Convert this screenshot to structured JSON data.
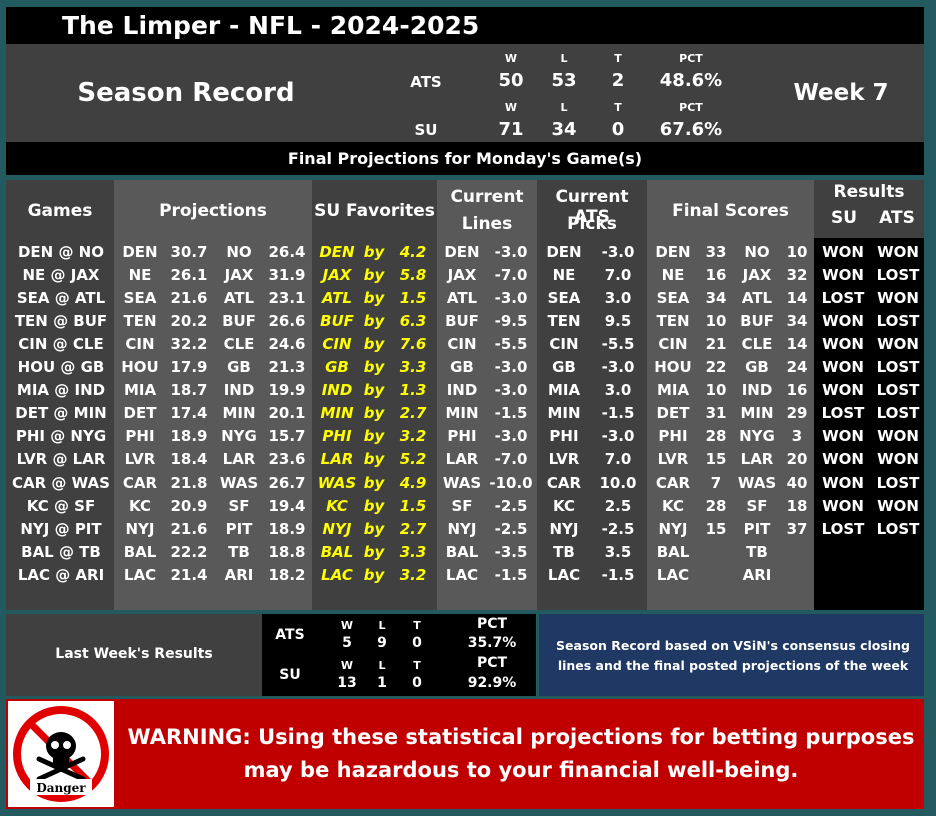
{
  "title": "The Limper - NFL - 2024-2025",
  "season": {
    "label": "Season Record",
    "week": "Week 7",
    "col_w": "W",
    "col_l": "L",
    "col_t": "T",
    "col_pct": "PCT",
    "ats": {
      "label": "ATS",
      "w": "50",
      "l": "53",
      "t": "2",
      "pct": "48.6%"
    },
    "su": {
      "label": "SU",
      "w": "71",
      "l": "34",
      "t": "0",
      "pct": "67.6%"
    }
  },
  "banner": "Final Projections for Monday's Game(s)",
  "headers": {
    "games": "Games",
    "projections": "Projections",
    "su_favorites": "SU Favorites",
    "current_lines_1": "Current",
    "current_lines_2": "Lines",
    "ats_picks_1": "Current ATS",
    "ats_picks_2": "Picks",
    "final_scores": "Final Scores",
    "results": "Results",
    "results_su": "SU",
    "results_ats": "ATS"
  },
  "games": [
    {
      "game": "DEN @ NO",
      "pa": "DEN",
      "pav": "30.7",
      "ph": "NO",
      "phv": "26.4",
      "fav": "DEN",
      "by": "by",
      "fv": "4.2",
      "lt": "DEN",
      "lv": "-3.0",
      "pt": "DEN",
      "pv": "-3.0",
      "fa": "DEN",
      "fas": "33",
      "fh": "NO",
      "fhs": "10",
      "su": "WON",
      "ats": "WON"
    },
    {
      "game": "NE @ JAX",
      "pa": "NE",
      "pav": "26.1",
      "ph": "JAX",
      "phv": "31.9",
      "fav": "JAX",
      "by": "by",
      "fv": "5.8",
      "lt": "JAX",
      "lv": "-7.0",
      "pt": "NE",
      "pv": "7.0",
      "fa": "NE",
      "fas": "16",
      "fh": "JAX",
      "fhs": "32",
      "su": "WON",
      "ats": "LOST"
    },
    {
      "game": "SEA @ ATL",
      "pa": "SEA",
      "pav": "21.6",
      "ph": "ATL",
      "phv": "23.1",
      "fav": "ATL",
      "by": "by",
      "fv": "1.5",
      "lt": "ATL",
      "lv": "-3.0",
      "pt": "SEA",
      "pv": "3.0",
      "fa": "SEA",
      "fas": "34",
      "fh": "ATL",
      "fhs": "14",
      "su": "LOST",
      "ats": "WON"
    },
    {
      "game": "TEN @ BUF",
      "pa": "TEN",
      "pav": "20.2",
      "ph": "BUF",
      "phv": "26.6",
      "fav": "BUF",
      "by": "by",
      "fv": "6.3",
      "lt": "BUF",
      "lv": "-9.5",
      "pt": "TEN",
      "pv": "9.5",
      "fa": "TEN",
      "fas": "10",
      "fh": "BUF",
      "fhs": "34",
      "su": "WON",
      "ats": "LOST"
    },
    {
      "game": "CIN @ CLE",
      "pa": "CIN",
      "pav": "32.2",
      "ph": "CLE",
      "phv": "24.6",
      "fav": "CIN",
      "by": "by",
      "fv": "7.6",
      "lt": "CIN",
      "lv": "-5.5",
      "pt": "CIN",
      "pv": "-5.5",
      "fa": "CIN",
      "fas": "21",
      "fh": "CLE",
      "fhs": "14",
      "su": "WON",
      "ats": "WON"
    },
    {
      "game": "HOU @ GB",
      "pa": "HOU",
      "pav": "17.9",
      "ph": "GB",
      "phv": "21.3",
      "fav": "GB",
      "by": "by",
      "fv": "3.3",
      "lt": "GB",
      "lv": "-3.0",
      "pt": "GB",
      "pv": "-3.0",
      "fa": "HOU",
      "fas": "22",
      "fh": "GB",
      "fhs": "24",
      "su": "WON",
      "ats": "LOST"
    },
    {
      "game": "MIA @ IND",
      "pa": "MIA",
      "pav": "18.7",
      "ph": "IND",
      "phv": "19.9",
      "fav": "IND",
      "by": "by",
      "fv": "1.3",
      "lt": "IND",
      "lv": "-3.0",
      "pt": "MIA",
      "pv": "3.0",
      "fa": "MIA",
      "fas": "10",
      "fh": "IND",
      "fhs": "16",
      "su": "WON",
      "ats": "LOST"
    },
    {
      "game": "DET @ MIN",
      "pa": "DET",
      "pav": "17.4",
      "ph": "MIN",
      "phv": "20.1",
      "fav": "MIN",
      "by": "by",
      "fv": "2.7",
      "lt": "MIN",
      "lv": "-1.5",
      "pt": "MIN",
      "pv": "-1.5",
      "fa": "DET",
      "fas": "31",
      "fh": "MIN",
      "fhs": "29",
      "su": "LOST",
      "ats": "LOST"
    },
    {
      "game": "PHI @ NYG",
      "pa": "PHI",
      "pav": "18.9",
      "ph": "NYG",
      "phv": "15.7",
      "fav": "PHI",
      "by": "by",
      "fv": "3.2",
      "lt": "PHI",
      "lv": "-3.0",
      "pt": "PHI",
      "pv": "-3.0",
      "fa": "PHI",
      "fas": "28",
      "fh": "NYG",
      "fhs": "3",
      "su": "WON",
      "ats": "WON"
    },
    {
      "game": "LVR @ LAR",
      "pa": "LVR",
      "pav": "18.4",
      "ph": "LAR",
      "phv": "23.6",
      "fav": "LAR",
      "by": "by",
      "fv": "5.2",
      "lt": "LAR",
      "lv": "-7.0",
      "pt": "LVR",
      "pv": "7.0",
      "fa": "LVR",
      "fas": "15",
      "fh": "LAR",
      "fhs": "20",
      "su": "WON",
      "ats": "WON"
    },
    {
      "game": "CAR @ WAS",
      "pa": "CAR",
      "pav": "21.8",
      "ph": "WAS",
      "phv": "26.7",
      "fav": "WAS",
      "by": "by",
      "fv": "4.9",
      "lt": "WAS",
      "lv": "-10.0",
      "pt": "CAR",
      "pv": "10.0",
      "fa": "CAR",
      "fas": "7",
      "fh": "WAS",
      "fhs": "40",
      "su": "WON",
      "ats": "LOST"
    },
    {
      "game": "KC @ SF",
      "pa": "KC",
      "pav": "20.9",
      "ph": "SF",
      "phv": "19.4",
      "fav": "KC",
      "by": "by",
      "fv": "1.5",
      "lt": "SF",
      "lv": "-2.5",
      "pt": "KC",
      "pv": "2.5",
      "fa": "KC",
      "fas": "28",
      "fh": "SF",
      "fhs": "18",
      "su": "WON",
      "ats": "WON"
    },
    {
      "game": "NYJ @ PIT",
      "pa": "NYJ",
      "pav": "21.6",
      "ph": "PIT",
      "phv": "18.9",
      "fav": "NYJ",
      "by": "by",
      "fv": "2.7",
      "lt": "NYJ",
      "lv": "-2.5",
      "pt": "NYJ",
      "pv": "-2.5",
      "fa": "NYJ",
      "fas": "15",
      "fh": "PIT",
      "fhs": "37",
      "su": "LOST",
      "ats": "LOST"
    },
    {
      "game": "BAL @ TB",
      "pa": "BAL",
      "pav": "22.2",
      "ph": "TB",
      "phv": "18.8",
      "fav": "BAL",
      "by": "by",
      "fv": "3.3",
      "lt": "BAL",
      "lv": "-3.5",
      "pt": "TB",
      "pv": "3.5",
      "fa": "BAL",
      "fas": "",
      "fh": "TB",
      "fhs": "",
      "su": "",
      "ats": ""
    },
    {
      "game": "LAC @ ARI",
      "pa": "LAC",
      "pav": "21.4",
      "ph": "ARI",
      "phv": "18.2",
      "fav": "LAC",
      "by": "by",
      "fv": "3.2",
      "lt": "LAC",
      "lv": "-1.5",
      "pt": "LAC",
      "pv": "-1.5",
      "fa": "LAC",
      "fas": "",
      "fh": "ARI",
      "fhs": "",
      "su": "",
      "ats": ""
    }
  ],
  "last_week": {
    "label": "Last Week's Results",
    "ats": {
      "label": "ATS",
      "w": "5",
      "l": "9",
      "t": "0",
      "pct": "35.7%"
    },
    "su": {
      "label": "SU",
      "w": "13",
      "l": "1",
      "t": "0",
      "pct": "92.9%"
    },
    "w": "W",
    "l": "L",
    "t": "T",
    "pct_label": "PCT"
  },
  "note": "Season Record based on VSiN's consensus closing lines and the final posted projections of the week",
  "warning": "WARNING: Using these statistical projections for betting purposes may be hazardous to your financial well-being.",
  "danger_label": "Danger"
}
